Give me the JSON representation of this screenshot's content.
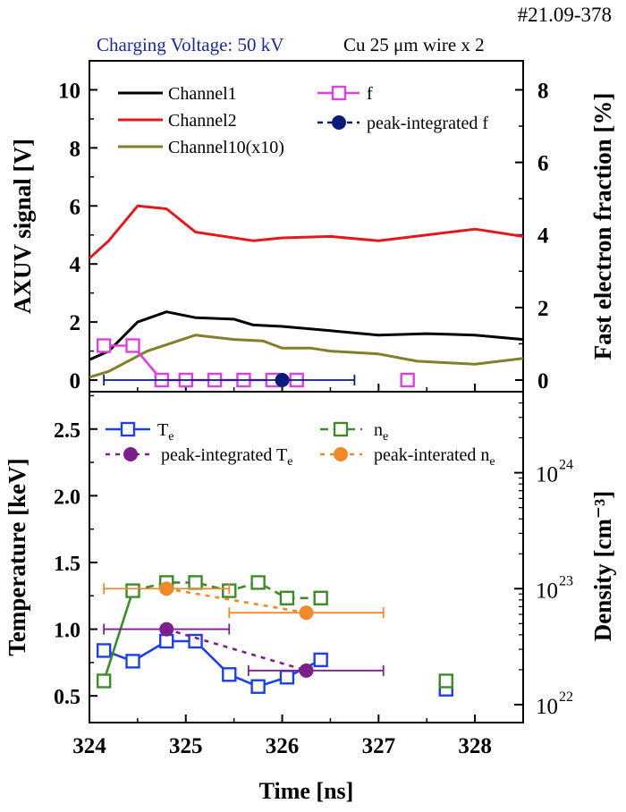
{
  "header": {
    "shot_id": "#21.09-378",
    "charging_voltage": "Charging Voltage: 50 kV",
    "wire": "Cu 25 μm wire x 2"
  },
  "colors": {
    "channel1": "#000000",
    "channel2": "#e31a1c",
    "channel10": "#808028",
    "f": "#e040e0",
    "peak_f": "#0a1a7a",
    "te": "#1f3fe6",
    "ne": "#3d8a2a",
    "peak_te": "#7b1f8c",
    "peak_ne": "#ef8a2c",
    "header_blue": "#1a2a9a"
  },
  "chart_data": [
    {
      "type": "line",
      "title": "",
      "xlabel": "",
      "ylabel": "AXUV signal [V]",
      "ylabel_right": "Fast electron fraction [%]",
      "xlim": [
        324,
        328.5
      ],
      "ylim": [
        -0.4,
        11
      ],
      "ylim_right": [
        -0.32,
        8.8
      ],
      "yticks": [
        0,
        2,
        4,
        6,
        8,
        10
      ],
      "yticks_right": [
        0,
        2,
        4,
        6,
        8
      ],
      "grid": false,
      "legend": "top",
      "series": [
        {
          "name": "Channel1",
          "color_key": "channel1",
          "axis": "left",
          "x": [
            324,
            324.2,
            324.5,
            324.8,
            325.1,
            325.5,
            325.7,
            326,
            326.5,
            327,
            327.5,
            328,
            328.5
          ],
          "y": [
            0.7,
            1.0,
            2.0,
            2.35,
            2.15,
            2.1,
            1.9,
            1.85,
            1.7,
            1.55,
            1.6,
            1.55,
            1.4
          ]
        },
        {
          "name": "Channel2",
          "color_key": "channel2",
          "axis": "left",
          "x": [
            324,
            324.2,
            324.5,
            324.8,
            325.1,
            325.5,
            325.7,
            326,
            326.5,
            327,
            327.5,
            328,
            328.5
          ],
          "y": [
            4.2,
            4.8,
            6.0,
            5.9,
            5.1,
            4.9,
            4.8,
            4.9,
            4.95,
            4.8,
            5.0,
            5.2,
            4.95
          ]
        },
        {
          "name": "Channel10(x10)",
          "color_key": "channel10",
          "axis": "left",
          "x": [
            324,
            324.2,
            324.6,
            325.1,
            325.5,
            325.8,
            326,
            326.3,
            326.5,
            327,
            327.4,
            328,
            328.5
          ],
          "y": [
            0.1,
            0.3,
            1.0,
            1.55,
            1.4,
            1.35,
            1.1,
            1.1,
            1.0,
            0.9,
            0.65,
            0.55,
            0.75
          ]
        },
        {
          "name": "f",
          "color_key": "f",
          "axis": "right",
          "marker": "square-open",
          "x": [
            324.15,
            324.45,
            324.75,
            325.0,
            325.3,
            325.6,
            325.9,
            326.15,
            327.3
          ],
          "y": [
            0.95,
            0.95,
            0,
            0,
            0,
            0,
            0,
            0,
            0
          ],
          "connected_count": 8
        },
        {
          "name": "peak-integrated f",
          "color_key": "peak_f",
          "axis": "right",
          "marker": "circle",
          "x": [
            326.0
          ],
          "y": [
            0
          ],
          "xerr_low": [
            1.85
          ],
          "xerr_high": [
            0.75
          ]
        }
      ]
    },
    {
      "type": "line",
      "title": "",
      "xlabel": "Time [ns]",
      "ylabel": "Temperature [keV]",
      "ylabel_right": "Density [cm⁻³]",
      "xlim": [
        324,
        328.5
      ],
      "xticks": [
        324,
        325,
        326,
        327,
        328
      ],
      "ylim": [
        0.3,
        2.78
      ],
      "yticks": [
        0.5,
        1.0,
        1.5,
        2.0,
        2.5
      ],
      "y_right_scale": "log",
      "ylim_right": [
        7e+21,
        5e+24
      ],
      "yticks_right": [
        1e+22,
        1e+23,
        1e+24
      ],
      "yticks_right_labels": [
        "10",
        "10",
        "10"
      ],
      "yticks_right_exponents": [
        "22",
        "23",
        "24"
      ],
      "grid": false,
      "legend": "top",
      "series": [
        {
          "name": "Te",
          "color_key": "te",
          "axis": "left",
          "marker": "square-open",
          "x": [
            324.15,
            324.45,
            324.8,
            325.1,
            325.45,
            325.75,
            326.05,
            326.4,
            327.7
          ],
          "y": [
            0.84,
            0.76,
            0.91,
            0.91,
            0.66,
            0.57,
            0.64,
            0.77,
            0.55
          ],
          "connected_count": 8
        },
        {
          "name": "ne",
          "color_key": "ne",
          "axis": "right",
          "marker": "square-open",
          "x": [
            324.15,
            324.45,
            324.8,
            325.1,
            325.45,
            325.75,
            326.05,
            326.4,
            327.7
          ],
          "y": [
            1.6e+22,
            9.6e+22,
            1.13e+23,
            1.13e+23,
            9.6e+22,
            1.13e+23,
            8.3e+22,
            8.3e+22,
            1.6e+22
          ],
          "connected_count": 8
        },
        {
          "name": "peak-integrated Te",
          "color_key": "peak_te",
          "axis": "left",
          "marker": "circle",
          "x": [
            324.8,
            326.25
          ],
          "y": [
            1.0,
            0.69
          ],
          "xerr_low": [
            0.65,
            0.6
          ],
          "xerr_high": [
            0.65,
            0.8
          ]
        },
        {
          "name": "peak-interated ne",
          "color_key": "peak_ne",
          "axis": "right",
          "marker": "circle",
          "x": [
            324.8,
            326.25
          ],
          "y": [
            1e+23,
            6.2e+22
          ],
          "xerr_low": [
            0.65,
            0.8
          ],
          "xerr_high": [
            0.65,
            0.8
          ]
        }
      ],
      "legend_labels": {
        "te": "T",
        "te_sub": "e",
        "ne": "n",
        "ne_sub": "e",
        "peak_te": "peak-integrated T",
        "peak_te_sub": "e",
        "peak_ne": "peak-interated n",
        "peak_ne_sub": "e"
      }
    }
  ],
  "legend_top": {
    "channel1": "Channel1",
    "channel2": "Channel2",
    "channel10": "Channel10(x10)",
    "f": "f",
    "peak_f": "peak-integrated f"
  }
}
